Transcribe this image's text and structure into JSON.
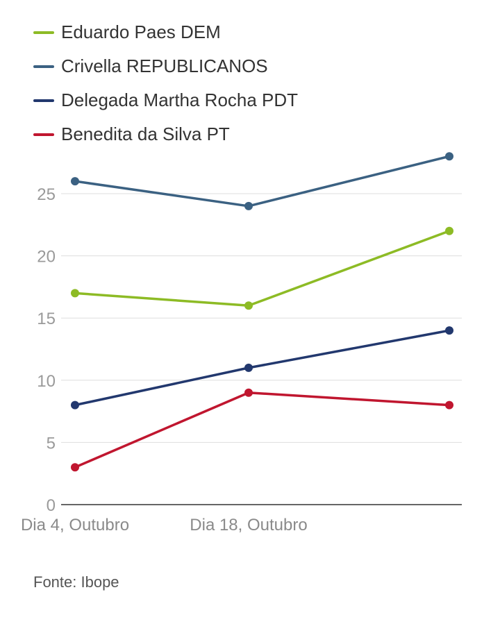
{
  "chart_data": {
    "type": "line",
    "x": [
      "Dia 4, Outubro",
      "Dia 18, Outubro",
      ""
    ],
    "xtick_labels": [
      "Dia 4, Outubro",
      "Dia 18, Outubro"
    ],
    "ylim": [
      0,
      28
    ],
    "yticks": [
      0,
      5,
      10,
      15,
      20,
      25
    ],
    "grid": true,
    "legend_position": "top-left",
    "series": [
      {
        "name": "Eduardo Paes DEM",
        "color": "#8dbb25",
        "values": [
          17,
          16,
          22
        ]
      },
      {
        "name": "Crivella REPUBLICANOS",
        "color": "#3b6182",
        "values": [
          26,
          24,
          28
        ]
      },
      {
        "name": "Delegada Martha Rocha PDT",
        "color": "#22386e",
        "values": [
          8,
          11,
          14
        ]
      },
      {
        "name": "Benedita da Silva PT",
        "color": "#c0162f",
        "values": [
          3,
          9,
          8
        ]
      }
    ]
  },
  "source_text": "Fonte: Ibope"
}
